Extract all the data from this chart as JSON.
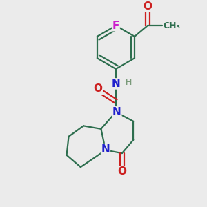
{
  "bg_color": "#ebebeb",
  "bond_color": "#2d6e4e",
  "N_color": "#2020cc",
  "O_color": "#cc2020",
  "F_color": "#cc20cc",
  "H_color": "#7a9a7a",
  "lw": 1.6,
  "fs": 11,
  "fs2": 9,
  "xlim": [
    0,
    10
  ],
  "ylim": [
    0,
    10
  ]
}
